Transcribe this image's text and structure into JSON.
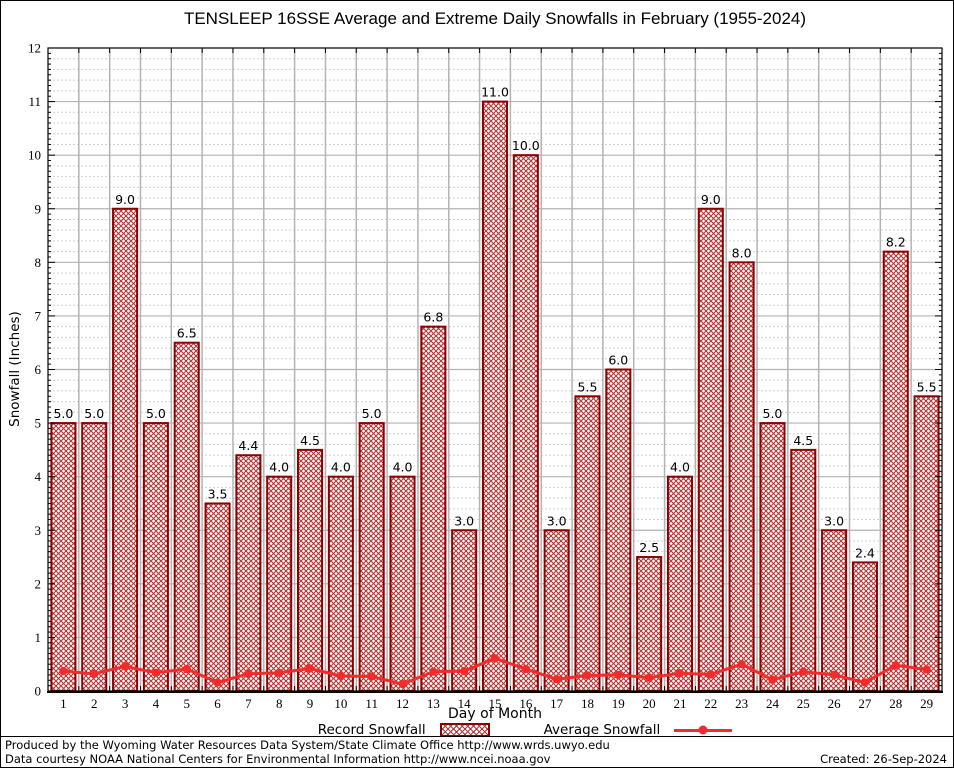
{
  "title": "TENSLEEP 16SSE Average and Extreme Daily Snowfalls in February (1955-2024)",
  "chart_data": {
    "type": "bar",
    "title": "TENSLEEP 16SSE Average and Extreme Daily Snowfalls in February (1955-2024)",
    "xlabel": "Day of Month",
    "ylabel": "Snowfall (Inches)",
    "ylim": [
      0,
      12
    ],
    "ytick_major": 1,
    "ytick_minor": 0.2,
    "grid": "on",
    "legend_position": "bottom-center",
    "categories": [
      1,
      2,
      3,
      4,
      5,
      6,
      7,
      8,
      9,
      10,
      11,
      12,
      13,
      14,
      15,
      16,
      17,
      18,
      19,
      20,
      21,
      22,
      23,
      24,
      25,
      26,
      27,
      28,
      29
    ],
    "series": [
      {
        "name": "Record Snowfall",
        "type": "bar",
        "style": "crosshatch",
        "values": [
          5.0,
          5.0,
          9.0,
          5.0,
          6.5,
          3.5,
          4.4,
          4.0,
          4.5,
          4.0,
          5.0,
          4.0,
          6.8,
          3.0,
          11.0,
          10.0,
          3.0,
          5.5,
          6.0,
          2.5,
          4.0,
          9.0,
          8.0,
          5.0,
          4.5,
          3.0,
          2.4,
          8.2,
          5.5
        ]
      },
      {
        "name": "Average Snowfall",
        "type": "line",
        "style": "line-with-markers",
        "values": [
          0.37,
          0.32,
          0.46,
          0.34,
          0.41,
          0.16,
          0.32,
          0.34,
          0.42,
          0.28,
          0.27,
          0.13,
          0.36,
          0.37,
          0.61,
          0.41,
          0.22,
          0.29,
          0.3,
          0.25,
          0.33,
          0.31,
          0.5,
          0.21,
          0.36,
          0.3,
          0.16,
          0.48,
          0.4
        ]
      }
    ],
    "colors": {
      "bar_border": "#8b0000",
      "bar_hatch": "#b23434",
      "avg_line": "#f32b2b",
      "grid_major": "#b3b3b3",
      "grid_minor": "#d0d0d0",
      "axis": "#000000"
    }
  },
  "axes": {
    "x_label": "Day of Month",
    "y_label": "Snowfall (Inches)"
  },
  "legend": {
    "record_label": "Record Snowfall",
    "average_label": "Average Snowfall"
  },
  "footer": {
    "line1": "Produced by the Wyoming Water Resources Data System/State Climate Office http://www.wrds.uwyo.edu",
    "line2": "Data courtesy NOAA National Centers for Environmental Information http://www.ncei.noaa.gov",
    "created": "Created: 26-Sep-2024"
  }
}
